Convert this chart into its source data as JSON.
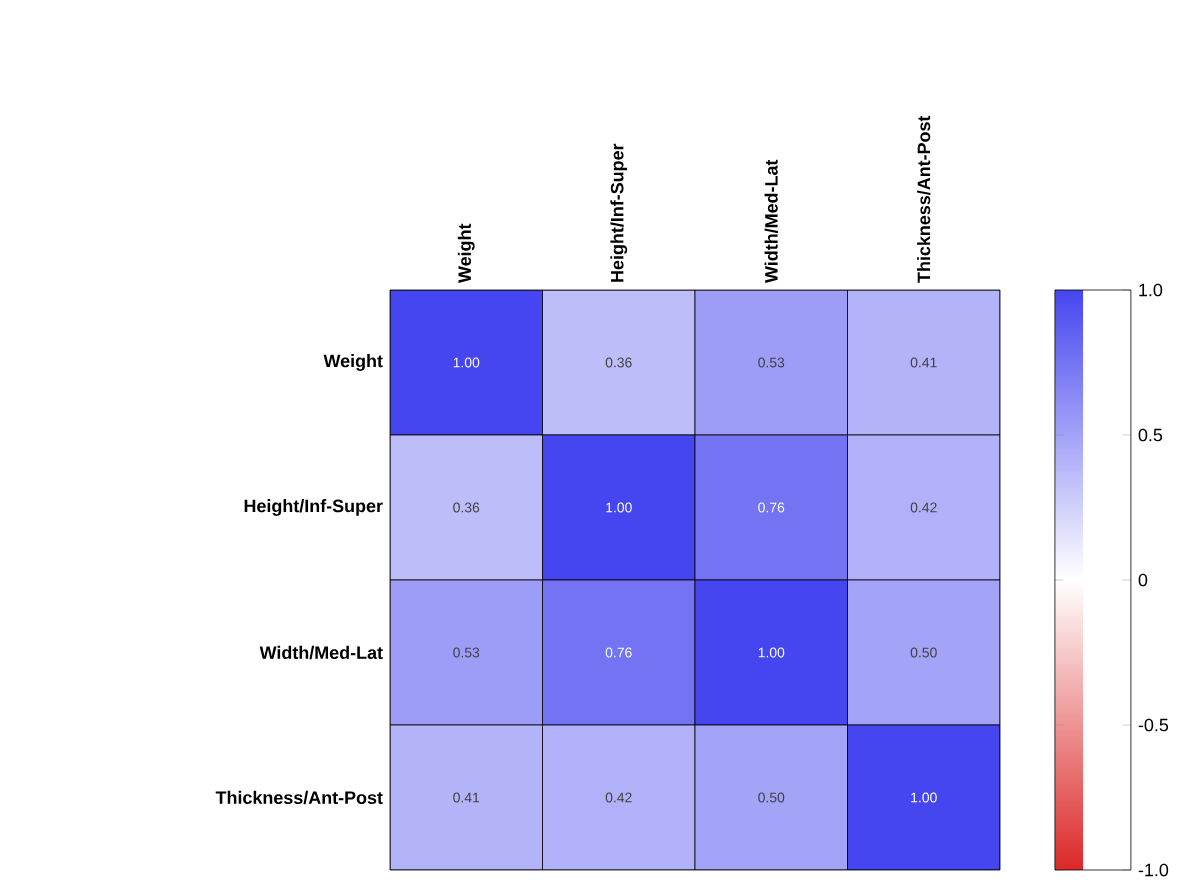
{
  "chart_data": {
    "type": "heatmap",
    "categories": [
      "Weight",
      "Height/Inf-Super",
      "Width/Med-Lat",
      "Thickness/Ant-Post"
    ],
    "y_categories": [
      "Weight",
      "Height/Inf-Super",
      "Width/Med-Lat",
      "Thickness/Ant-Post"
    ],
    "cells": [
      [
        1.0,
        0.36,
        0.53,
        0.41
      ],
      [
        0.36,
        1.0,
        0.76,
        0.42
      ],
      [
        0.53,
        0.76,
        1.0,
        0.5
      ],
      [
        0.41,
        0.42,
        0.5,
        1.0
      ]
    ],
    "cell_labels": [
      [
        "1.00",
        "0.36",
        "0.53",
        "0.41"
      ],
      [
        "0.36",
        "1.00",
        "0.76",
        "0.42"
      ],
      [
        "0.53",
        "0.76",
        "1.00",
        "0.50"
      ],
      [
        "0.41",
        "0.42",
        "0.50",
        "1.00"
      ]
    ],
    "clim": [
      -1,
      1
    ],
    "cticks": [
      {
        "value": 1,
        "label": "1.0"
      },
      {
        "value": 0.5,
        "label": "0.5"
      },
      0,
      {
        "value": -0.5,
        "label": "-0.5"
      },
      {
        "value": -1,
        "label": "-1.0"
      }
    ]
  }
}
